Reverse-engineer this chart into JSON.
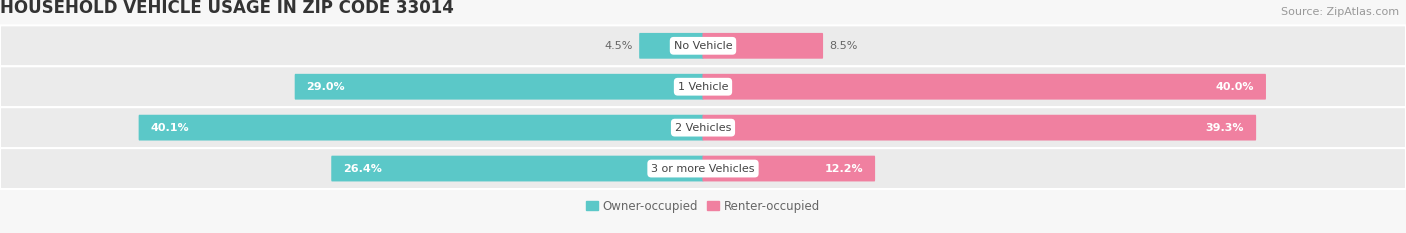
{
  "title": "HOUSEHOLD VEHICLE USAGE IN ZIP CODE 33014",
  "source": "Source: ZipAtlas.com",
  "categories": [
    "No Vehicle",
    "1 Vehicle",
    "2 Vehicles",
    "3 or more Vehicles"
  ],
  "owner_values": [
    4.5,
    29.0,
    40.1,
    26.4
  ],
  "renter_values": [
    8.5,
    40.0,
    39.3,
    12.2
  ],
  "owner_color": "#5BC8C8",
  "renter_color": "#F080A0",
  "owner_label": "Owner-occupied",
  "renter_label": "Renter-occupied",
  "background_color": "#f7f7f7",
  "row_bg_color": "#ebebeb",
  "xlim": 50.0,
  "title_fontsize": 12,
  "source_fontsize": 8,
  "label_fontsize": 8,
  "value_fontsize": 8,
  "tick_fontsize": 8.5,
  "legend_fontsize": 8.5
}
